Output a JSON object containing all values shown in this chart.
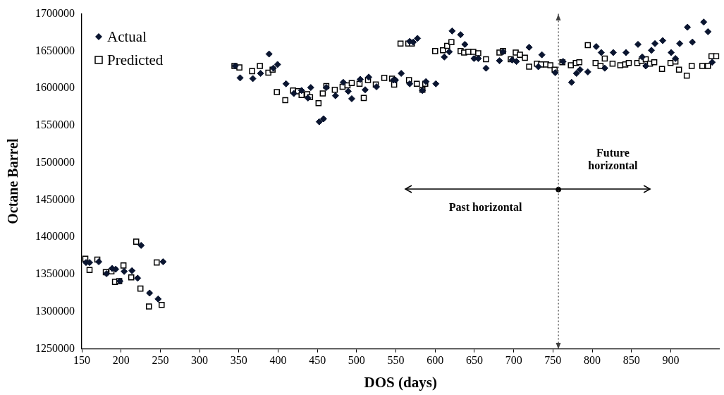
{
  "chart_data": {
    "type": "scatter",
    "xlabel": "DOS (days)",
    "ylabel": "Octane Barrel",
    "xlim": [
      150,
      962
    ],
    "xticks": [
      150,
      200,
      250,
      300,
      350,
      400,
      450,
      500,
      550,
      600,
      650,
      700,
      750,
      800,
      850,
      900
    ],
    "ylim": [
      1250000,
      1700000
    ],
    "yticks": [
      1250000,
      1300000,
      1350000,
      1400000,
      1450000,
      1500000,
      1550000,
      1600000,
      1650000,
      1700000
    ],
    "grid": false,
    "legend": "top left",
    "annotations": [
      "Past horizontal",
      "Future horizontal"
    ],
    "ref_lines": [
      {
        "axis": "x",
        "value": 757,
        "label": null,
        "line_style": "dotted",
        "color": "#404040"
      }
    ],
    "series": [
      {
        "name": "Actual",
        "color": "#0a1530",
        "marker": "diamond",
        "x": [
          155.4,
          159.9,
          171.6,
          181.5,
          188.7,
          193.2,
          198.6,
          204,
          213.9,
          221.1,
          225.6,
          236.4,
          247.2,
          253.5,
          345.3,
          351.6,
          367.8,
          377.7,
          388.5,
          393.9,
          399.3,
          410.1,
          420,
          429.9,
          438,
          441.6,
          452.4,
          457.8,
          461.4,
          473.1,
          483,
          489.3,
          493.8,
          504.6,
          510.9,
          515.4,
          525.3,
          546.9,
          549.6,
          556.8,
          567.6,
          567.6,
          572.1,
          577.5,
          583.8,
          588.3,
          600.9,
          611.7,
          618,
          621.6,
          632.4,
          637.8,
          649.5,
          654.9,
          664.8,
          681.9,
          686.4,
          698.1,
          703.5,
          719.7,
          731.4,
          735.9,
          753,
          762.9,
          773.7,
          780,
          784.5,
          794.4,
          805.2,
          811.5,
          816,
          826.8,
          843,
          858.3,
          863.7,
          868.2,
          875.4,
          879.9,
          889.8,
          900.6,
          906,
          911.4,
          921.3,
          927.6,
          942,
          947.4,
          952.8
        ],
        "values": [
          1366000,
          1366000,
          1367000,
          1351000,
          1358000,
          1357000,
          1341000,
          1354000,
          1355000,
          1345000,
          1389000,
          1325000,
          1317000,
          1367000,
          1630000,
          1614000,
          1613000,
          1620000,
          1646000,
          1627000,
          1632000,
          1606000,
          1593000,
          1597000,
          1587000,
          1601000,
          1555000,
          1559000,
          1601000,
          1590000,
          1608000,
          1596000,
          1586000,
          1612000,
          1598000,
          1615000,
          1602000,
          1611000,
          1611000,
          1620000,
          1663000,
          1606000,
          1662000,
          1667000,
          1597000,
          1609000,
          1606000,
          1642000,
          1649000,
          1677000,
          1672000,
          1659000,
          1640000,
          1640000,
          1627000,
          1637000,
          1649000,
          1638000,
          1636000,
          1655000,
          1629000,
          1645000,
          1621000,
          1636000,
          1608000,
          1620000,
          1625000,
          1622000,
          1656000,
          1648000,
          1627000,
          1648000,
          1648000,
          1659000,
          1642000,
          1630000,
          1651000,
          1660000,
          1664000,
          1648000,
          1640000,
          1660000,
          1682000,
          1662000,
          1689000,
          1676000,
          1635000
        ]
      },
      {
        "name": "Predicted",
        "color": "#000000",
        "marker": "square",
        "x": [
          154.5,
          159.9,
          169.8,
          180.6,
          187.8,
          192.3,
          197.7,
          203.1,
          213,
          219.3,
          224.7,
          235.5,
          245.4,
          251.7,
          344.4,
          350.7,
          366.9,
          376.8,
          387.6,
          393,
          398.4,
          409.2,
          419.1,
          425.4,
          429.9,
          437.1,
          440.7,
          451.5,
          456.9,
          461.4,
          472.2,
          482.1,
          488.4,
          493.8,
          503.7,
          509.1,
          514.5,
          524.4,
          535.2,
          545.1,
          547.8,
          555.9,
          565.8,
          570.3,
          566.7,
          576.6,
          583.8,
          587.4,
          600,
          609.9,
          615.3,
          620.7,
          632.4,
          636.9,
          642.3,
          648.6,
          654.9,
          664.8,
          681.9,
          686.4,
          696.3,
          702.6,
          708,
          714.3,
          719.7,
          729.6,
          735,
          741.3,
          746.7,
          752.1,
          762,
          772.8,
          779.1,
          783.6,
          794.4,
          804.3,
          810.6,
          816,
          825.9,
          835.8,
          842.1,
          846.6,
          857.4,
          862.8,
          868.2,
          873.6,
          879,
          888.9,
          899.7,
          906,
          910.5,
          920.4,
          926.7,
          940.2,
          947.4,
          951.9,
          958
        ],
        "values": [
          1371000,
          1356000,
          1370000,
          1353000,
          1354000,
          1340000,
          1341000,
          1362000,
          1346000,
          1394000,
          1331000,
          1307000,
          1366000,
          1309000,
          1630000,
          1628000,
          1623000,
          1630000,
          1621000,
          1625000,
          1595000,
          1584000,
          1597000,
          1596000,
          1591000,
          1592000,
          1588000,
          1580000,
          1593000,
          1603000,
          1598000,
          1602000,
          1604000,
          1607000,
          1606000,
          1587000,
          1611000,
          1605000,
          1614000,
          1613000,
          1605000,
          1660000,
          1660000,
          1660000,
          1611000,
          1606000,
          1598000,
          1606000,
          1650000,
          1651000,
          1657000,
          1662000,
          1650000,
          1648000,
          1649000,
          1649000,
          1647000,
          1639000,
          1648000,
          1650000,
          1639000,
          1648000,
          1645000,
          1641000,
          1629000,
          1633000,
          1632000,
          1632000,
          1631000,
          1625000,
          1635000,
          1631000,
          1634000,
          1635000,
          1658000,
          1634000,
          1630000,
          1640000,
          1633000,
          1631000,
          1632000,
          1634000,
          1634000,
          1637000,
          1639000,
          1633000,
          1635000,
          1626000,
          1634000,
          1636000,
          1625000,
          1617000,
          1630000,
          1630000,
          1630000,
          1643000,
          1643000
        ]
      },
      {
        "color": "#000000",
        "marker": "circle",
        "x": [
          757
        ],
        "values": [
          1464000
        ]
      }
    ]
  }
}
